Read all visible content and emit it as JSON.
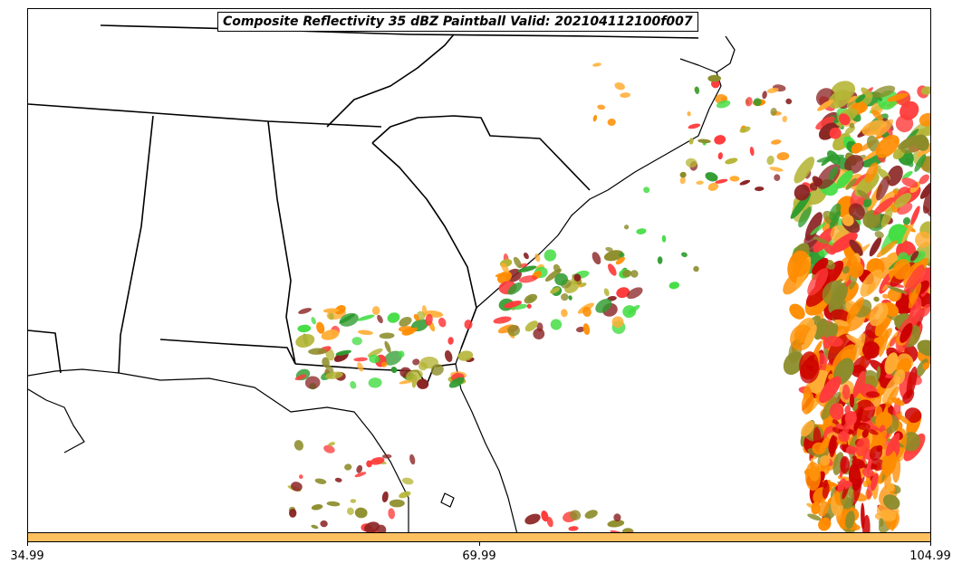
{
  "title": "Composite Reflectivity 35 dBZ Paintball Valid: 202104112100f007",
  "colorbar": {
    "fill_color": "#ffc060",
    "ticks": [
      "34.99",
      "69.99",
      "104.99"
    ]
  },
  "paint_colors": {
    "red": "#ff3b3b",
    "orange": "#ff8c00",
    "light_orange": "#ffad33",
    "green": "#2e9b2e",
    "light_green": "#44dd44",
    "olive": "#8c8c2a",
    "yellow_olive": "#b5b536",
    "maroon": "#8b2323",
    "dark_red": "#cc0000"
  },
  "map_features": [
    "coastline",
    "state-borders",
    "reflectivity-paintballs"
  ]
}
